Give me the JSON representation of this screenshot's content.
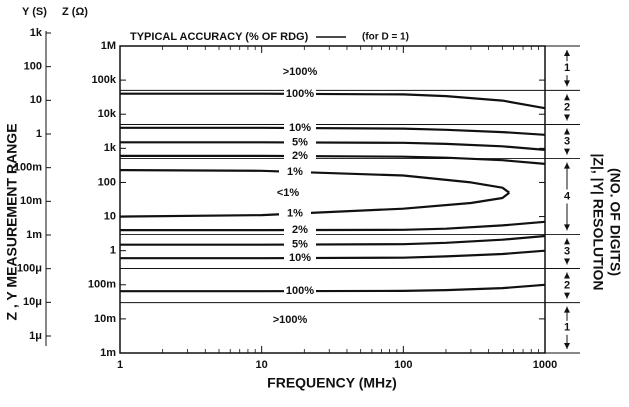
{
  "chart_data": {
    "type": "line",
    "title": "TYPICAL ACCURACY (% OF RDG)",
    "subtitle": "(for D = 1)",
    "y_header": "Y (S)",
    "z_header": "Z (Ω)",
    "ylabel": "Z , Y MEASUREMENT RANGE",
    "xlabel": "FREQUENCY (MHz)",
    "y3label": "|Z|, |Y| RESOLUTION",
    "y3sublabel": "(NO. OF DIGITS)",
    "log_x": true,
    "log_y": true,
    "xlim": [
      1,
      1000
    ],
    "xticks": [
      1,
      10,
      100,
      1000
    ],
    "xminorticks": [
      2,
      3,
      4,
      5,
      6,
      7,
      8,
      9,
      20,
      30,
      40,
      50,
      60,
      70,
      80,
      90,
      200,
      300,
      400,
      500,
      600,
      700,
      800,
      900
    ],
    "ylim": [
      0.001,
      1000000
    ],
    "yticks": [
      {
        "value": 0.001,
        "label": "1m"
      },
      {
        "value": 0.01,
        "label": "10m"
      },
      {
        "value": 0.1,
        "label": "100m"
      },
      1,
      10,
      100,
      {
        "value": 1000,
        "label": "1k"
      },
      {
        "value": 10000,
        "label": "10k"
      },
      {
        "value": 100000,
        "label": "100k"
      },
      {
        "value": 1000000,
        "label": "1M"
      }
    ],
    "y2lim": [
      1e-06,
      1000
    ],
    "y2ticks": [
      {
        "value": 1e-06,
        "label": "1μ"
      },
      {
        "value": 1e-05,
        "label": "10μ"
      },
      {
        "value": 0.0001,
        "label": "100μ"
      },
      {
        "value": 0.001,
        "label": "1m"
      },
      {
        "value": 0.01,
        "label": "10m"
      },
      {
        "value": 0.1,
        "label": "100m"
      },
      1,
      10,
      100,
      {
        "value": 1000,
        "label": "1k"
      }
    ],
    "color": "#111111",
    "series": [
      {
        "name": "100%",
        "x": [
          1,
          10,
          100,
          200,
          500,
          1000
        ],
        "values": [
          40000,
          40000,
          38000,
          34000,
          25000,
          15000
        ]
      },
      {
        "name": "10%",
        "x": [
          1,
          10,
          100,
          200,
          500,
          1000
        ],
        "values": [
          4000,
          4000,
          3800,
          3500,
          3000,
          2500
        ]
      },
      {
        "name": "5%",
        "x": [
          1,
          10,
          100,
          200,
          500,
          1000
        ],
        "values": [
          1500,
          1500,
          1450,
          1350,
          1150,
          900
        ]
      },
      {
        "name": "2%",
        "x": [
          1,
          10,
          100,
          200,
          500,
          1000
        ],
        "values": [
          600,
          600,
          570,
          530,
          450,
          350
        ]
      },
      {
        "name": "1%",
        "x": [
          1,
          10,
          100,
          300,
          500,
          560
        ],
        "values": [
          230,
          220,
          160,
          100,
          70,
          50
        ]
      },
      {
        "name": "1%",
        "x": [
          1,
          10,
          100,
          300,
          500,
          560
        ],
        "values": [
          10,
          11,
          17,
          25,
          35,
          50
        ]
      },
      {
        "name": "2%",
        "x": [
          1,
          10,
          100,
          200,
          500,
          1000
        ],
        "values": [
          4,
          4,
          4.1,
          4.4,
          5.5,
          7
        ]
      },
      {
        "name": "5%",
        "x": [
          1,
          10,
          100,
          200,
          500,
          1000
        ],
        "values": [
          1.5,
          1.5,
          1.55,
          1.7,
          2.1,
          2.7
        ]
      },
      {
        "name": "10%",
        "x": [
          1,
          10,
          100,
          200,
          500,
          1000
        ],
        "values": [
          0.6,
          0.6,
          0.62,
          0.68,
          0.8,
          1
        ]
      },
      {
        "name": "100%",
        "x": [
          1,
          10,
          100,
          200,
          500,
          1000
        ],
        "values": [
          0.065,
          0.065,
          0.066,
          0.07,
          0.08,
          0.1
        ]
      }
    ],
    "annotations": [
      ">100%",
      "<1%",
      ">100%"
    ],
    "resolution": {
      "digits": [
        1,
        2,
        3,
        4,
        3,
        2,
        1
      ],
      "bounds": [
        1000000,
        50000,
        5000,
        500,
        3,
        0.3,
        0.03,
        0.001
      ]
    }
  }
}
